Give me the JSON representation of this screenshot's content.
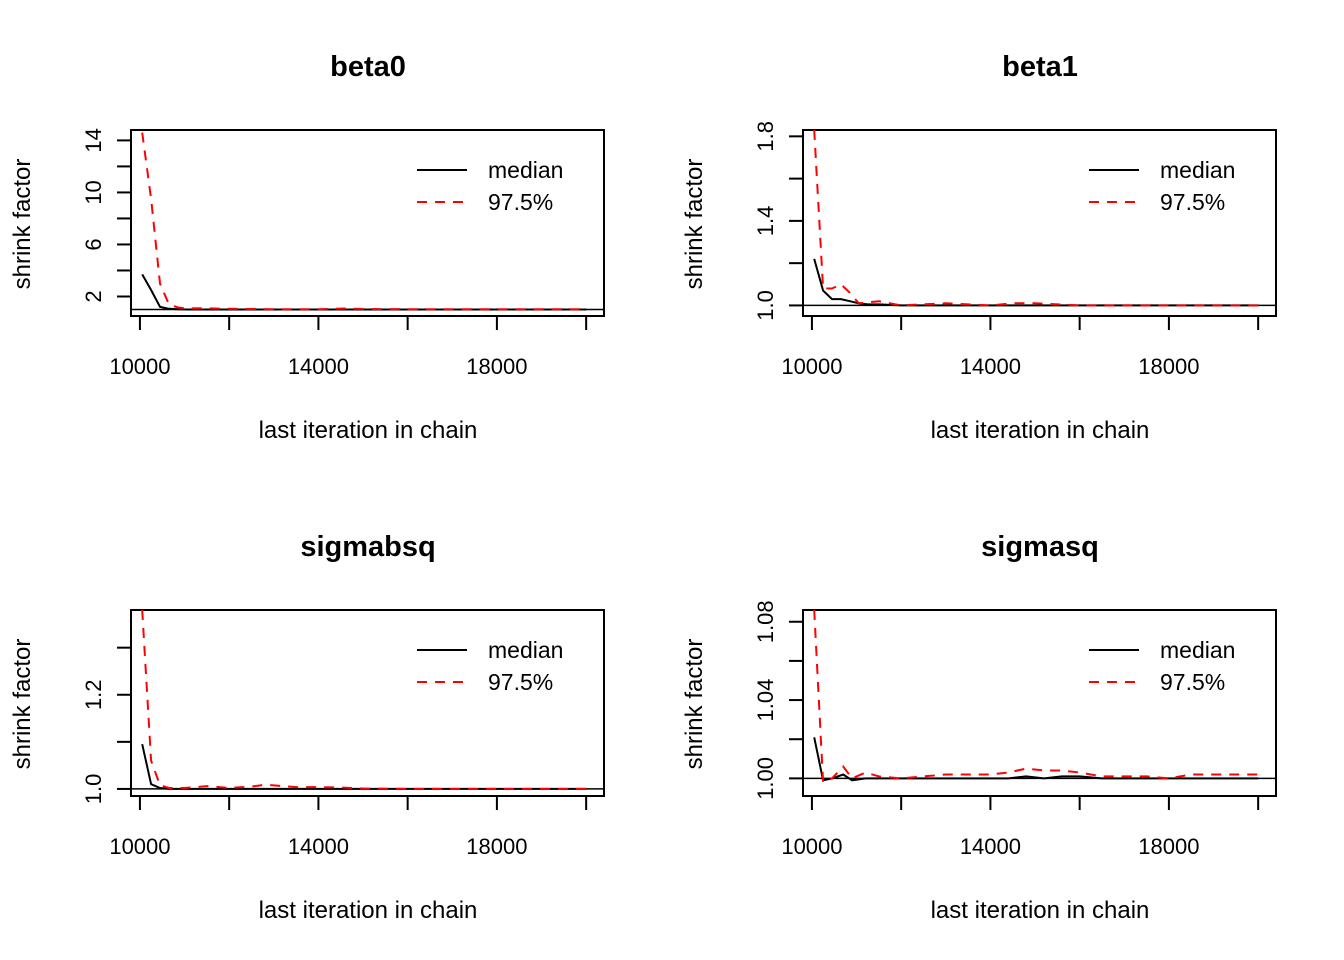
{
  "colors": {
    "median": "#000000",
    "q975": "#ff0000",
    "axis": "#000000",
    "background": "#ffffff"
  },
  "chart_data": [
    {
      "type": "line",
      "title": "beta0",
      "xlabel": "last iteration in chain",
      "ylabel": "shrink factor",
      "xlim": [
        9800,
        20400
      ],
      "ylim": [
        0.5,
        14.8
      ],
      "xticks": [
        10000,
        12000,
        14000,
        16000,
        18000,
        20000
      ],
      "xtick_labels": [
        "10000",
        "",
        "14000",
        "",
        "18000",
        ""
      ],
      "yticks": [
        2,
        4,
        6,
        8,
        10,
        12,
        14
      ],
      "ytick_labels": [
        "2",
        "",
        "6",
        "",
        "10",
        "",
        "14"
      ],
      "reference_line": 1,
      "legend": {
        "position": "top-right",
        "entries": [
          "median",
          "97.5%"
        ]
      },
      "x": [
        10050,
        10250,
        10450,
        10650,
        10850,
        11050,
        11450,
        12000,
        13000,
        14000,
        14600,
        15000,
        16000,
        17000,
        18000,
        19000,
        20000
      ],
      "series": [
        {
          "name": "median",
          "style": "solid",
          "values": [
            3.7,
            2.5,
            1.2,
            1.05,
            1.02,
            1.0,
            1.0,
            1.0,
            1.0,
            1.0,
            1.0,
            1.0,
            1.0,
            1.0,
            1.0,
            1.0,
            1.0
          ]
        },
        {
          "name": "97.5%",
          "style": "dashed",
          "values": [
            14.6,
            9.5,
            3.0,
            1.4,
            1.15,
            1.08,
            1.1,
            1.05,
            1.02,
            1.02,
            1.08,
            1.04,
            1.02,
            1.02,
            1.02,
            1.02,
            1.02
          ]
        }
      ]
    },
    {
      "type": "line",
      "title": "beta1",
      "xlabel": "last iteration in chain",
      "ylabel": "shrink factor",
      "xlim": [
        9800,
        20400
      ],
      "ylim": [
        0.95,
        1.83
      ],
      "xticks": [
        10000,
        12000,
        14000,
        16000,
        18000,
        20000
      ],
      "xtick_labels": [
        "10000",
        "",
        "14000",
        "",
        "18000",
        ""
      ],
      "yticks": [
        1.0,
        1.2,
        1.4,
        1.6,
        1.8
      ],
      "ytick_labels": [
        "1.0",
        "",
        "1.4",
        "",
        "1.8"
      ],
      "reference_line": 1,
      "legend": {
        "position": "top-right",
        "entries": [
          "median",
          "97.5%"
        ]
      },
      "x": [
        10050,
        10250,
        10450,
        10650,
        10850,
        11050,
        11250,
        11500,
        12000,
        13000,
        14000,
        14500,
        15000,
        16000,
        17000,
        18000,
        19000,
        20000
      ],
      "series": [
        {
          "name": "median",
          "style": "solid",
          "values": [
            1.22,
            1.07,
            1.03,
            1.03,
            1.02,
            1.01,
            1.005,
            1.005,
            1.0,
            1.0,
            1.0,
            1.0,
            1.0,
            1.0,
            1.0,
            1.0,
            1.0,
            1.0
          ]
        },
        {
          "name": "97.5%",
          "style": "dashed",
          "values": [
            1.83,
            1.08,
            1.08,
            1.1,
            1.06,
            1.01,
            1.015,
            1.02,
            1.0,
            1.01,
            1.0,
            1.01,
            1.01,
            1.0,
            1.0,
            1.0,
            1.0,
            1.0
          ]
        }
      ]
    },
    {
      "type": "line",
      "title": "sigmabsq",
      "xlabel": "last iteration in chain",
      "ylabel": "shrink factor",
      "xlim": [
        9800,
        20400
      ],
      "ylim": [
        0.985,
        1.38
      ],
      "xticks": [
        10000,
        12000,
        14000,
        16000,
        18000,
        20000
      ],
      "xtick_labels": [
        "10000",
        "",
        "14000",
        "",
        "18000",
        ""
      ],
      "yticks": [
        1.0,
        1.1,
        1.2,
        1.3
      ],
      "ytick_labels": [
        "1.0",
        "",
        "1.2",
        ""
      ],
      "reference_line": 1,
      "legend": {
        "position": "top-right",
        "entries": [
          "median",
          "97.5%"
        ]
      },
      "x": [
        10050,
        10250,
        10450,
        10650,
        11000,
        11500,
        12000,
        12500,
        12800,
        13500,
        14000,
        14500,
        15000,
        16000,
        17000,
        18000,
        19000,
        20000
      ],
      "series": [
        {
          "name": "median",
          "style": "solid",
          "values": [
            1.095,
            1.01,
            1.002,
            1.0,
            1.0,
            1.0,
            1.0,
            1.0,
            1.0,
            1.0,
            1.0,
            1.0,
            1.0,
            1.0,
            1.0,
            1.0,
            1.0,
            1.0
          ]
        },
        {
          "name": "97.5%",
          "style": "dashed",
          "values": [
            1.38,
            1.06,
            1.008,
            1.002,
            1.002,
            1.006,
            1.002,
            1.005,
            1.009,
            1.004,
            1.004,
            1.003,
            1.001,
            1.0,
            1.0,
            1.0,
            1.0,
            1.0
          ]
        }
      ]
    },
    {
      "type": "line",
      "title": "sigmasq",
      "xlabel": "last iteration in chain",
      "ylabel": "shrink factor",
      "xlim": [
        9800,
        20400
      ],
      "ylim": [
        0.991,
        1.086
      ],
      "xticks": [
        10000,
        12000,
        14000,
        16000,
        18000,
        20000
      ],
      "xtick_labels": [
        "10000",
        "",
        "14000",
        "",
        "18000",
        ""
      ],
      "yticks": [
        1.0,
        1.02,
        1.04,
        1.06,
        1.08
      ],
      "ytick_labels": [
        "1.00",
        "",
        "1.04",
        "",
        "1.08"
      ],
      "reference_line": 1,
      "legend": {
        "position": "top-right",
        "entries": [
          "median",
          "97.5%"
        ]
      },
      "x": [
        10050,
        10250,
        10450,
        10700,
        10900,
        11200,
        11500,
        12000,
        12500,
        13000,
        13500,
        14000,
        14400,
        14800,
        15200,
        15600,
        16000,
        16500,
        17000,
        17500,
        18000,
        18500,
        19000,
        19500,
        20000
      ],
      "series": [
        {
          "name": "median",
          "style": "solid",
          "values": [
            1.021,
            0.999,
            1.0,
            1.002,
            0.999,
            1.0,
            1.0,
            1.0,
            1.0,
            1.0,
            1.0,
            1.0,
            1.0,
            1.001,
            1.0,
            1.001,
            1.001,
            1.0,
            1.0,
            1.0,
            1.0,
            1.0,
            1.0,
            1.0,
            1.0
          ]
        },
        {
          "name": "97.5%",
          "style": "dashed",
          "values": [
            1.086,
            0.998,
            1.0,
            1.006,
            1.0,
            1.003,
            1.001,
            1.0,
            1.001,
            1.002,
            1.002,
            1.002,
            1.003,
            1.005,
            1.004,
            1.004,
            1.003,
            1.001,
            1.001,
            1.001,
            1.0,
            1.002,
            1.002,
            1.002,
            1.002
          ]
        }
      ]
    }
  ]
}
